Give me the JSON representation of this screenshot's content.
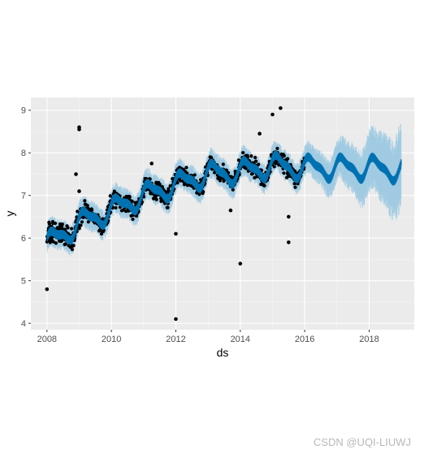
{
  "chart_data": {
    "type": "scatter",
    "title": "",
    "xlabel": "ds",
    "ylabel": "y",
    "xlim": [
      2007.5,
      2019.4
    ],
    "ylim": [
      3.85,
      9.3
    ],
    "x_ticks": [
      2008,
      2010,
      2012,
      2014,
      2016,
      2018
    ],
    "y_ticks": [
      4,
      5,
      6,
      7,
      8,
      9
    ],
    "grid": true,
    "legend": "none",
    "observed": {
      "name": "",
      "description": "daily observed y values, 2008 to end of 2015 (dense black points)",
      "outliers": [
        {
          "x": 2008.0,
          "y": 4.8
        },
        {
          "x": 2009.0,
          "y": 8.6
        },
        {
          "x": 2009.0,
          "y": 8.55
        },
        {
          "x": 2008.9,
          "y": 7.5
        },
        {
          "x": 2009.0,
          "y": 7.1
        },
        {
          "x": 2011.25,
          "y": 7.75
        },
        {
          "x": 2012.0,
          "y": 6.1
        },
        {
          "x": 2012.0,
          "y": 4.1
        },
        {
          "x": 2014.0,
          "y": 5.4
        },
        {
          "x": 2014.6,
          "y": 8.45
        },
        {
          "x": 2015.0,
          "y": 8.9
        },
        {
          "x": 2015.25,
          "y": 9.05
        },
        {
          "x": 2015.5,
          "y": 6.5
        },
        {
          "x": 2015.5,
          "y": 5.9
        },
        {
          "x": 2013.7,
          "y": 6.65
        }
      ]
    },
    "forecast": {
      "name": "",
      "description": "fitted trend + yearly/weekly seasonality forecast (yhat) with uncertainty interval band",
      "trend_knots": [
        {
          "x": 2008.0,
          "y": 5.85
        },
        {
          "x": 2009.0,
          "y": 6.35
        },
        {
          "x": 2010.0,
          "y": 6.65
        },
        {
          "x": 2011.0,
          "y": 7.0
        },
        {
          "x": 2012.0,
          "y": 7.25
        },
        {
          "x": 2013.0,
          "y": 7.5
        },
        {
          "x": 2014.0,
          "y": 7.55
        },
        {
          "x": 2015.0,
          "y": 7.7
        },
        {
          "x": 2016.0,
          "y": 7.65
        },
        {
          "x": 2017.0,
          "y": 7.65
        },
        {
          "x": 2018.0,
          "y": 7.65
        },
        {
          "x": 2019.0,
          "y": 7.6
        }
      ],
      "interval_halfwidth": [
        {
          "x": 2008.0,
          "y": 0.3
        },
        {
          "x": 2016.0,
          "y": 0.3
        },
        {
          "x": 2017.0,
          "y": 0.4
        },
        {
          "x": 2018.0,
          "y": 0.6
        },
        {
          "x": 2019.0,
          "y": 0.85
        }
      ]
    },
    "colors": {
      "panel_background": "#ebebeb",
      "grid_major": "#ffffff",
      "observed_points": "#000000",
      "forecast_line": "#0072b2",
      "forecast_band": "#9ecae1"
    }
  },
  "watermark": "CSDN @UQI-LIUWJ"
}
